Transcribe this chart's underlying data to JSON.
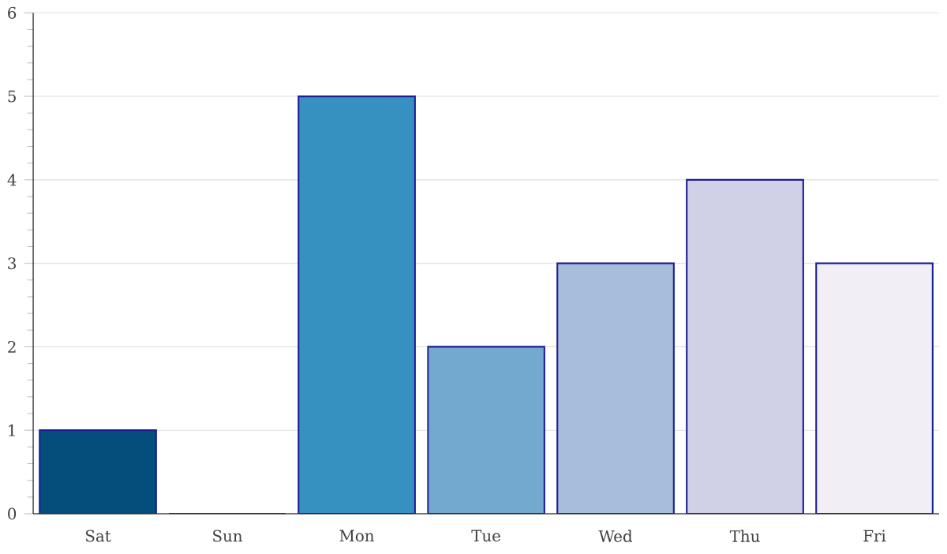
{
  "chart_data": {
    "type": "bar",
    "categories": [
      "Sat",
      "Sun",
      "Mon",
      "Tue",
      "Wed",
      "Thu",
      "Fri"
    ],
    "values": [
      1,
      0,
      5,
      2,
      3,
      4,
      3
    ],
    "colors": [
      "#034e7b",
      "#0570b0",
      "#3690c0",
      "#74a9cf",
      "#a6bddb",
      "#d0d1e6",
      "#f1eef6"
    ],
    "ylim": [
      0,
      6
    ],
    "yticks": [
      0,
      1,
      2,
      3,
      4,
      5,
      6
    ],
    "grid": "y"
  }
}
